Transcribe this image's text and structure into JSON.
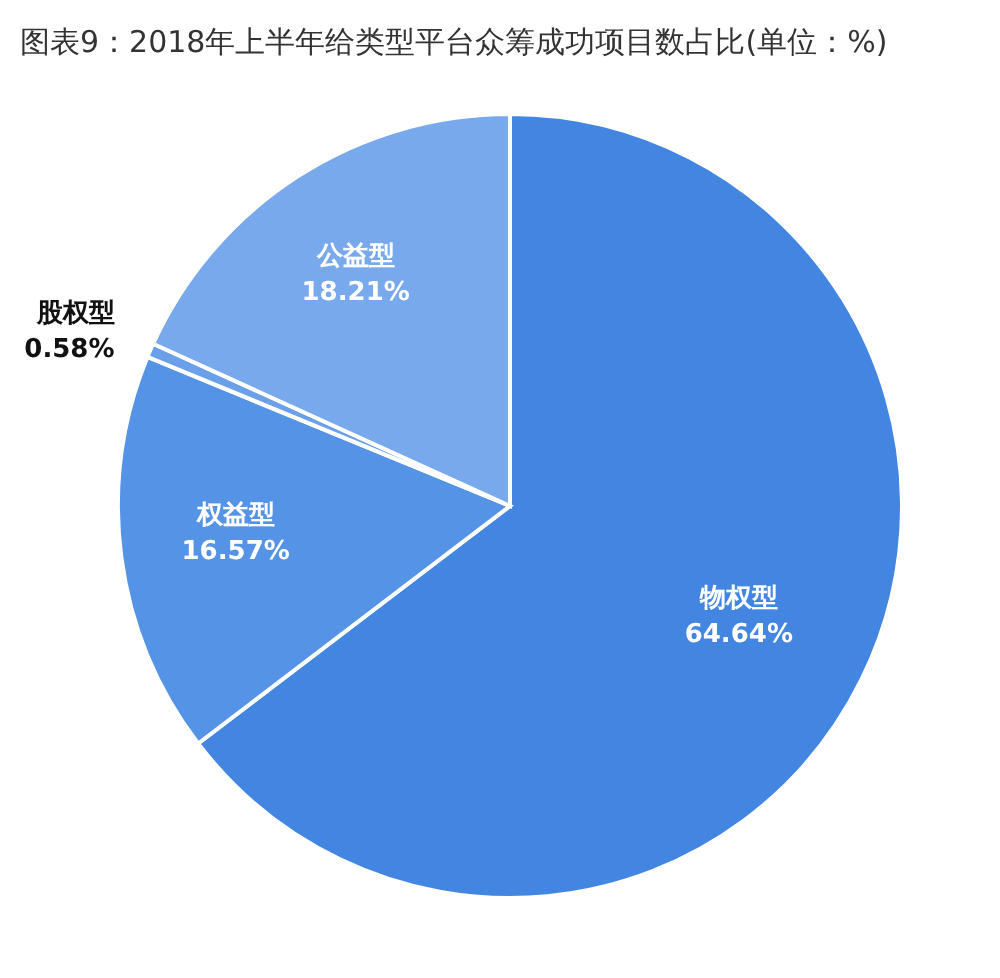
{
  "chart_data": {
    "type": "pie",
    "title": "图表9：2018年上半年给类型平台众筹成功项目数占比(单位：%)",
    "categories": [
      "物权型",
      "权益型",
      "股权型",
      "公益型"
    ],
    "values": [
      64.64,
      16.57,
      0.58,
      18.21
    ],
    "colors": [
      "#4286e2",
      "#5593e6",
      "#6a9fe9",
      "#78a9ec"
    ],
    "value_labels": [
      "64.64%",
      "16.57%",
      "0.58%",
      "18.21%"
    ],
    "legend": false
  }
}
